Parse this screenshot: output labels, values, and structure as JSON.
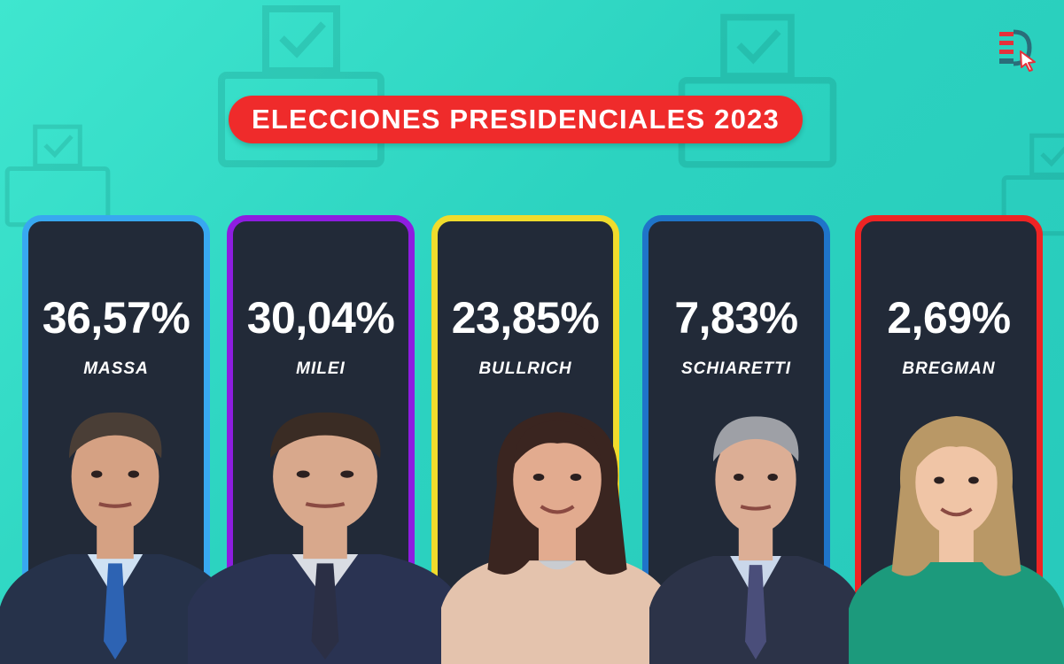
{
  "title": "ELECCIONES PRESIDENCIALES 2023",
  "logo_icon": "media-logo-with-cursor-icon",
  "colors": {
    "background": "#2fd6c3",
    "title_pill": "#ef2b2b",
    "card_bg": "#222a38"
  },
  "candidates": [
    {
      "name": "MASSA",
      "percentage": "36,57%",
      "border_color": "#38a8f0",
      "suit": "#26324a",
      "shirt": "#cfe1f3",
      "tie": "#2d63b3",
      "hair": "#4a3e36",
      "skin": "#d5a183"
    },
    {
      "name": "MILEI",
      "percentage": "30,04%",
      "border_color": "#8e1de0",
      "suit": "#2a3352",
      "shirt": "#d9dce3",
      "tie": "#2b2f45",
      "hair": "#3a2c24",
      "skin": "#d8a88c"
    },
    {
      "name": "BULLRICH",
      "percentage": "23,85%",
      "border_color": "#f0dc2c",
      "suit": "#e4c3ad",
      "shirt": "#c9ccd1",
      "tie": "",
      "hair": "#3a2520",
      "skin": "#e2ab8f"
    },
    {
      "name": "SCHIARETTI",
      "percentage": "7,83%",
      "border_color": "#1f74c9",
      "suit": "#2c3348",
      "shirt": "#cad7ea",
      "tie": "#4a4e7a",
      "hair": "#9ea0a6",
      "skin": "#dcae95"
    },
    {
      "name": "BREGMAN",
      "percentage": "2,69%",
      "border_color": "#ee2424",
      "suit": "#1c9a7c",
      "shirt": "#1c9a7c",
      "tie": "",
      "hair": "#b99866",
      "skin": "#f0c5a6"
    }
  ]
}
